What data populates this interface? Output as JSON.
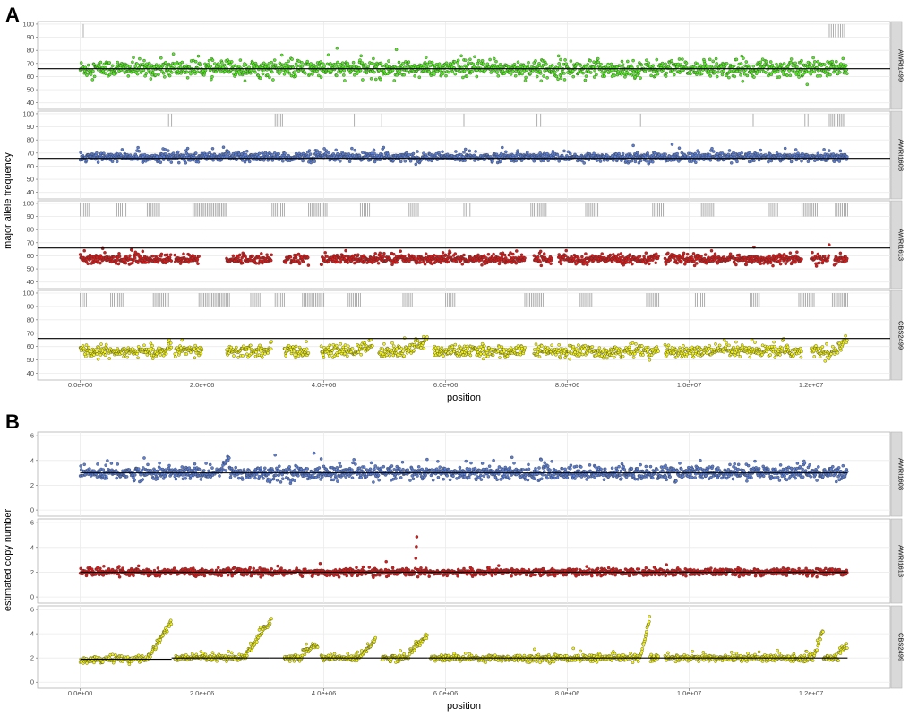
{
  "chart_data": [
    {
      "panel_label": "A",
      "type": "scatter",
      "xlabel": "position",
      "ylabel": "major allele frequency",
      "xlim": [
        -700000,
        13300000
      ],
      "ylim": [
        35,
        102
      ],
      "x_ticks": [
        0,
        2000000,
        4000000,
        6000000,
        8000000,
        10000000,
        12000000
      ],
      "x_tick_labels": [
        "0.0e+00",
        "2.0e+06",
        "4.0e+06",
        "6.0e+06",
        "8.0e+06",
        "1.0e+07",
        "1.2e+07"
      ],
      "y_ticks": [
        40,
        50,
        60,
        70,
        80,
        90,
        100
      ],
      "y_tick_labels": [
        "40",
        "50",
        "60",
        "70",
        "80",
        "90",
        "100"
      ],
      "hline": 66,
      "grid": true,
      "genome_end": 12600000,
      "facets": [
        {
          "strain": "AWRI1499",
          "color": "#55ee22",
          "baseline": 66,
          "spread": 3.2,
          "gaps": [],
          "shifts": [],
          "ticks": [
            [
              50000,
              80000
            ],
            [
              12300000,
              12400000
            ],
            [
              12450000,
              12550000
            ]
          ]
        },
        {
          "strain": "AWRI1608",
          "color": "#5a7fd8",
          "baseline": 67,
          "spread": 1.7,
          "gaps": [],
          "shifts": [
            [
              2300000,
              2450000,
              5
            ]
          ],
          "ticks": [
            [
              1450000,
              1500000
            ],
            [
              3200000,
              3320000
            ],
            [
              4500000,
              4530000
            ],
            [
              4950000,
              4980000
            ],
            [
              6300000,
              6320000
            ],
            [
              7500000,
              7560000
            ],
            [
              9200000,
              9220000
            ],
            [
              11050000,
              11080000
            ],
            [
              11900000,
              11950000
            ],
            [
              12300000,
              12550000
            ]
          ]
        },
        {
          "strain": "AWRI1613",
          "color": "#e01818",
          "baseline": 57.5,
          "spread": 1.8,
          "gaps": [
            [
              1500000,
              1550000
            ],
            [
              1950000,
              2400000
            ],
            [
              3150000,
              3350000
            ],
            [
              3750000,
              3950000
            ],
            [
              7300000,
              7450000
            ],
            [
              7750000,
              7850000
            ],
            [
              9500000,
              9600000
            ],
            [
              11850000,
              12000000
            ],
            [
              12300000,
              12380000
            ]
          ],
          "shifts": [],
          "ticks": [
            [
              0,
              150000
            ],
            [
              600000,
              750000
            ],
            [
              1100000,
              1300000
            ],
            [
              1850000,
              2400000
            ],
            [
              3150000,
              3350000
            ],
            [
              3750000,
              4050000
            ],
            [
              4600000,
              4750000
            ],
            [
              5400000,
              5550000
            ],
            [
              6300000,
              6400000
            ],
            [
              7400000,
              7650000
            ],
            [
              8300000,
              8500000
            ],
            [
              9400000,
              9600000
            ],
            [
              10200000,
              10400000
            ],
            [
              11300000,
              11450000
            ],
            [
              11850000,
              12100000
            ],
            [
              12400000,
              12600000
            ]
          ]
        },
        {
          "strain": "CBS2499",
          "color": "#f4f41a",
          "baseline": 56.5,
          "spread": 2.2,
          "gaps": [
            [
              1500000,
              1550000
            ],
            [
              2000000,
              2400000
            ],
            [
              3150000,
              3350000
            ],
            [
              3750000,
              3950000
            ],
            [
              4800000,
              4900000
            ],
            [
              5700000,
              5800000
            ],
            [
              7300000,
              7450000
            ],
            [
              9500000,
              9600000
            ],
            [
              11850000,
              12000000
            ]
          ],
          "shifts": [
            [
              1400000,
              1500000,
              4
            ],
            [
              3100000,
              3150000,
              8
            ],
            [
              4500000,
              4800000,
              5
            ],
            [
              5300000,
              5700000,
              8
            ],
            [
              12400000,
              12600000,
              10
            ]
          ],
          "ticks": [
            [
              0,
              100000
            ],
            [
              500000,
              700000
            ],
            [
              1200000,
              1450000
            ],
            [
              1950000,
              2450000
            ],
            [
              2800000,
              2950000
            ],
            [
              3200000,
              3350000
            ],
            [
              3650000,
              4000000
            ],
            [
              4400000,
              4600000
            ],
            [
              5300000,
              5450000
            ],
            [
              6000000,
              6150000
            ],
            [
              7300000,
              7600000
            ],
            [
              8200000,
              8400000
            ],
            [
              9300000,
              9500000
            ],
            [
              10100000,
              10250000
            ],
            [
              11000000,
              11150000
            ],
            [
              11800000,
              12050000
            ],
            [
              12350000,
              12600000
            ]
          ]
        }
      ]
    },
    {
      "panel_label": "B",
      "type": "scatter",
      "xlabel": "position",
      "ylabel": "estimated copy number",
      "xlim": [
        -700000,
        13300000
      ],
      "ylim": [
        -0.5,
        6.3
      ],
      "x_ticks": [
        0,
        2000000,
        4000000,
        6000000,
        8000000,
        10000000,
        12000000
      ],
      "x_tick_labels": [
        "0.0e+00",
        "2.0e+06",
        "4.0e+06",
        "6.0e+06",
        "8.0e+06",
        "1.0e+07",
        "1.2e+07"
      ],
      "y_ticks": [
        0,
        2,
        4,
        6
      ],
      "y_tick_labels": [
        "0",
        "2",
        "4",
        "6"
      ],
      "grid": true,
      "genome_end": 12600000,
      "facets": [
        {
          "strain": "AWRI1608",
          "color": "#5a7fd8",
          "baseline": 3,
          "spread": 0.28,
          "segments": [
            [
              0,
              12600000,
              3
            ]
          ],
          "ramps": [
            [
              2250000,
              2450000,
              3,
              4.3
            ]
          ],
          "gaps": []
        },
        {
          "strain": "AWRI1613",
          "color": "#e01818",
          "baseline": 2,
          "spread": 0.14,
          "segments": [
            [
              0,
              12600000,
              2
            ]
          ],
          "ramps": [
            [
              5500000,
              5530000,
              2,
              5.3
            ]
          ],
          "gaps": []
        },
        {
          "strain": "CBS2499",
          "color": "#f4f41a",
          "baseline": 2,
          "spread": 0.14,
          "segments": [
            [
              0,
              1500000,
              1.9
            ],
            [
              1500000,
              3100000,
              2
            ],
            [
              3100000,
              5700000,
              2
            ],
            [
              5700000,
              12600000,
              2
            ]
          ],
          "ramps": [
            [
              1100000,
              1500000,
              2,
              5
            ],
            [
              2700000,
              3250000,
              2.1,
              6
            ],
            [
              3650000,
              3900000,
              2.7,
              3.1
            ],
            [
              4600000,
              4850000,
              2.1,
              3.6
            ],
            [
              5400000,
              5700000,
              2.5,
              3.8
            ],
            [
              9200000,
              9350000,
              2.1,
              5.2
            ],
            [
              12050000,
              12200000,
              2.2,
              4.4
            ],
            [
              12450000,
              12600000,
              2.5,
              3
            ]
          ],
          "gaps": [
            [
              1500000,
              1550000
            ],
            [
              3150000,
              3350000
            ],
            [
              3900000,
              3950000
            ],
            [
              4850000,
              4950000
            ],
            [
              5700000,
              5750000
            ],
            [
              9500000,
              9600000
            ]
          ]
        }
      ]
    }
  ]
}
